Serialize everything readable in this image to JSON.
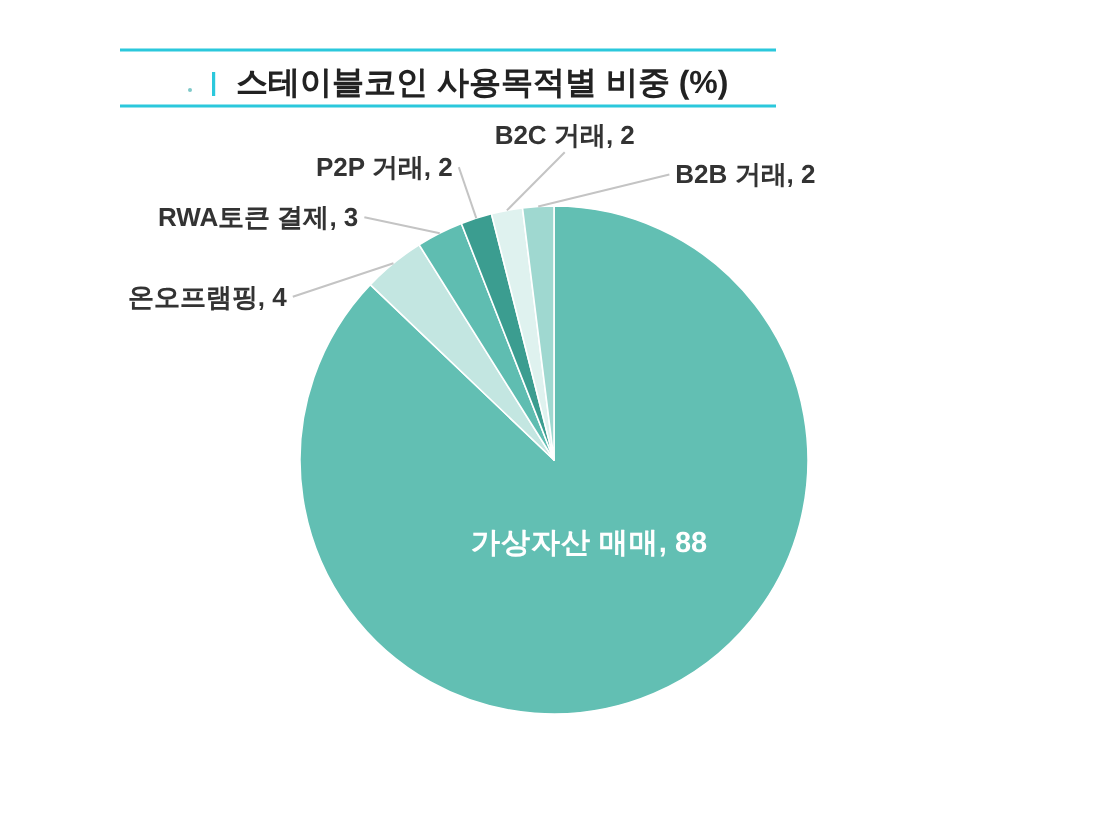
{
  "chart_data": {
    "type": "pie",
    "title": "스테이블코인 사용목적별 비중 (%)",
    "categories": [
      "가상자산 매매",
      "온오프램핑",
      "RWA토큰 결제",
      "P2P 거래",
      "B2C 거래",
      "B2B 거래"
    ],
    "values": [
      88,
      4,
      3,
      2,
      2,
      2
    ],
    "value_labels": [
      ", 88",
      ", 4",
      ", 3",
      ", 2",
      ", 2",
      ", 2"
    ],
    "colors": [
      "#62bfb3",
      "#c3e6e1",
      "#5fbdb1",
      "#3b9d90",
      "#dff2ef",
      "#9fd8d0"
    ]
  }
}
